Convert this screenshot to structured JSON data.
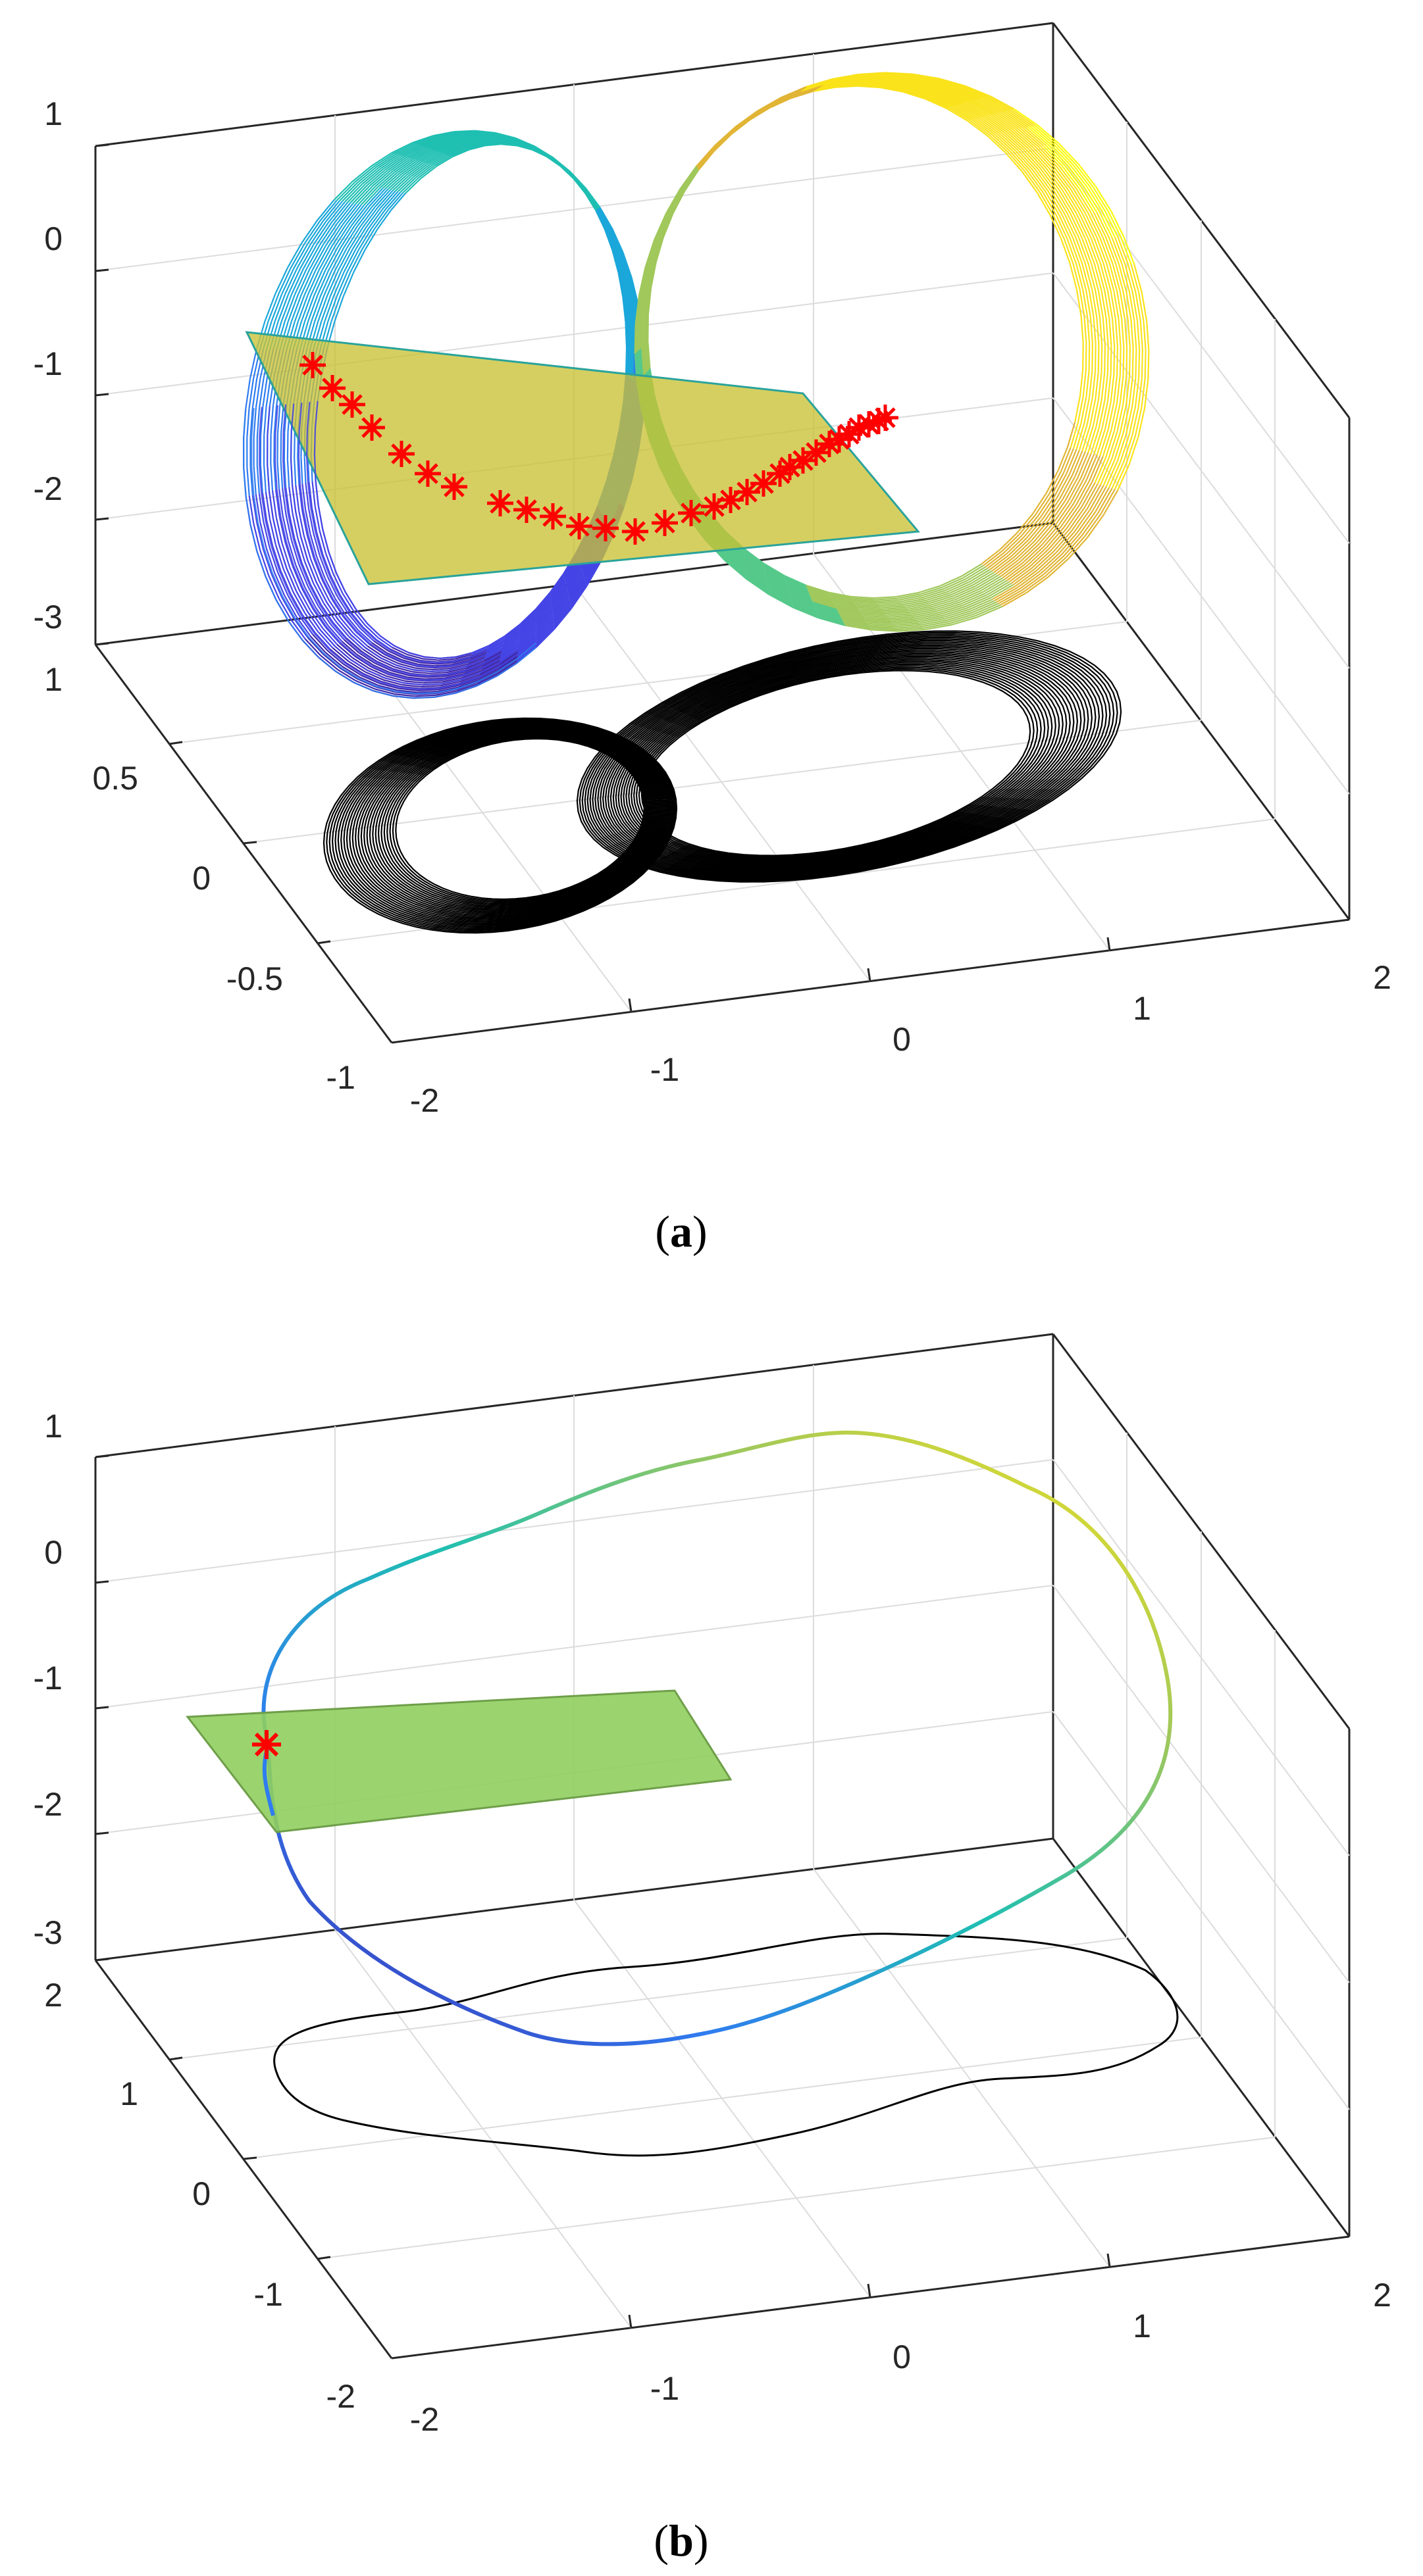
{
  "palette": {
    "parula": [
      "#3e26a8",
      "#4444e6",
      "#2f7cf0",
      "#1ba7da",
      "#1fbfb2",
      "#55c98a",
      "#a0c85b",
      "#e1b536",
      "#fae31a",
      "#f9fb0e"
    ],
    "poincare_plane_a": "#c9c234",
    "poincare_plane_b": "#90cf5e",
    "marker": "#ff0000",
    "projection": "#000000",
    "axis": "#262626"
  },
  "chart_data": [
    {
      "panel": "a",
      "type": "line3d",
      "caption_letter": "a",
      "caption_open": "(",
      "caption_close": ")",
      "z_ticks": [
        "1",
        "0",
        "-1",
        "-2",
        "-3"
      ],
      "y_ticks": [
        "1",
        "0.5",
        "0",
        "-0.5",
        "-1"
      ],
      "x_ticks": [
        "-2",
        "-1",
        "0",
        "1",
        "2"
      ],
      "xlim": [
        -2,
        2
      ],
      "ylim": [
        -1,
        1
      ],
      "zlim": [
        -3,
        1
      ],
      "grid": true,
      "series": [
        {
          "kind": "chaotic attractor trajectory",
          "colormap": "parula"
        },
        {
          "kind": "projection on bottom plane",
          "color": "black"
        },
        {
          "kind": "Poincaré section plane",
          "color": "yellow-green"
        },
        {
          "kind": "section crossing points",
          "marker": "*",
          "color": "red",
          "points_left": 14,
          "points_right": 16
        }
      ]
    },
    {
      "panel": "b",
      "type": "line3d",
      "caption_letter": "b",
      "caption_open": "(",
      "caption_close": ")",
      "z_ticks": [
        "1",
        "0",
        "-1",
        "-2",
        "-3"
      ],
      "y_ticks": [
        "2",
        "1",
        "0",
        "-1",
        "-2"
      ],
      "x_ticks": [
        "-2",
        "-1",
        "0",
        "1",
        "2"
      ],
      "xlim": [
        -2,
        2
      ],
      "ylim": [
        -2,
        2
      ],
      "zlim": [
        -3,
        1
      ],
      "grid": true,
      "series": [
        {
          "kind": "periodic orbit",
          "colormap": "parula"
        },
        {
          "kind": "projection on bottom plane",
          "color": "black"
        },
        {
          "kind": "Poincaré section plane",
          "color": "green"
        },
        {
          "kind": "section crossing points",
          "marker": "*",
          "color": "red",
          "points": 1
        }
      ]
    }
  ]
}
